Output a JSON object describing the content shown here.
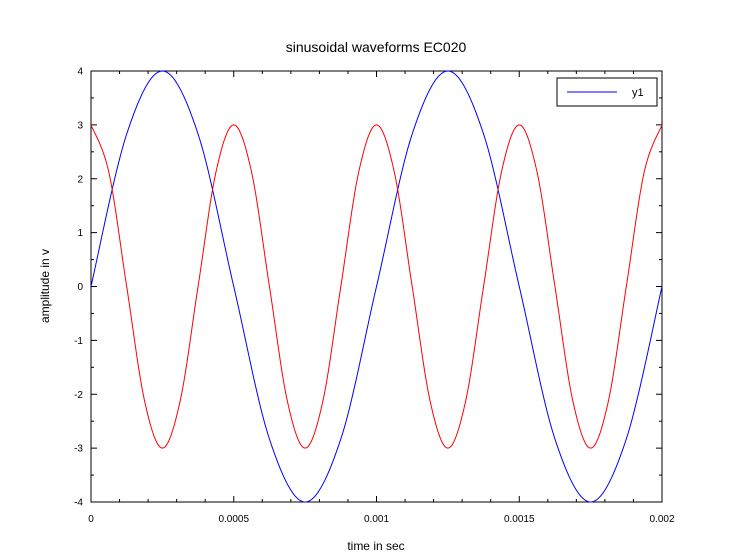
{
  "chart_data": {
    "type": "line",
    "title": "sinusoidal waveforms EC020",
    "xlabel": "time in sec",
    "ylabel": "amplitude in v",
    "xlim": [
      0,
      0.002
    ],
    "ylim": [
      -4,
      4
    ],
    "x_ticks": [
      0,
      0.0005,
      0.001,
      0.0015,
      0.002
    ],
    "x_tick_labels": [
      "0",
      "0.0005",
      "0.001",
      "0.0015",
      "0.002"
    ],
    "y_ticks": [
      -4,
      -3,
      -2,
      -1,
      0,
      1,
      2,
      3,
      4
    ],
    "y_tick_labels": [
      "-4",
      "-3",
      "-2",
      "-1",
      "0",
      "1",
      "2",
      "3",
      "4"
    ],
    "grid": false,
    "legend_position": "top-right",
    "legend_entries": [
      "y1"
    ],
    "series": [
      {
        "name": "y1",
        "color": "#0000ff",
        "function": "4*sin(2*pi*1000*t)",
        "x": [
          0,
          0.000125,
          0.00025,
          0.000375,
          0.0005,
          0.000625,
          0.00075,
          0.000875,
          0.001,
          0.001125,
          0.00125,
          0.001375,
          0.0015,
          0.001625,
          0.00175,
          0.001875,
          0.002
        ],
        "values": [
          0,
          2.83,
          4,
          2.83,
          0,
          -2.83,
          -4,
          -2.83,
          0,
          2.83,
          4,
          2.83,
          0,
          -2.83,
          -4,
          -2.83,
          0
        ]
      },
      {
        "color": "#ff0000",
        "function": "3*cos(2*pi*2000*t)",
        "x": [
          0,
          6.25e-05,
          0.000125,
          0.0001875,
          0.00025,
          0.0003125,
          0.000375,
          0.0004375,
          0.0005,
          0.0005625,
          0.000625,
          0.0006875,
          0.00075,
          0.0008125,
          0.000875,
          0.0009375,
          0.001,
          0.0010625,
          0.001125,
          0.0011875,
          0.00125,
          0.0013125,
          0.001375,
          0.0014375,
          0.0015,
          0.0015625,
          0.001625,
          0.0016875,
          0.00175,
          0.0018125,
          0.001875,
          0.0019375,
          0.002
        ],
        "values": [
          3,
          2.12,
          0,
          -2.12,
          -3,
          -2.12,
          0,
          2.12,
          3,
          2.12,
          0,
          -2.12,
          -3,
          -2.12,
          0,
          2.12,
          3,
          2.12,
          0,
          -2.12,
          -3,
          -2.12,
          0,
          2.12,
          3,
          2.12,
          0,
          -2.12,
          -3,
          -2.12,
          0,
          2.12,
          3
        ]
      }
    ]
  }
}
